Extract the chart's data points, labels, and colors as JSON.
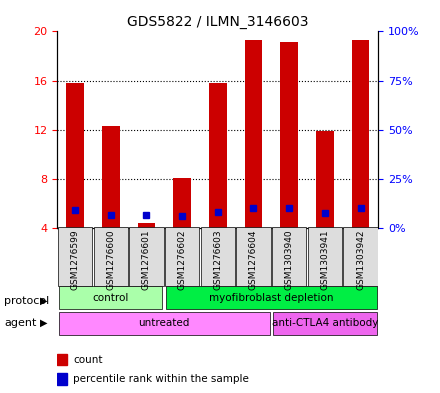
{
  "title": "GDS5822 / ILMN_3146603",
  "samples": [
    "GSM1276599",
    "GSM1276600",
    "GSM1276601",
    "GSM1276602",
    "GSM1276603",
    "GSM1276604",
    "GSM1303940",
    "GSM1303941",
    "GSM1303942"
  ],
  "count_bottom": [
    4,
    4,
    4,
    4,
    4,
    4,
    4,
    4,
    4
  ],
  "count_top": [
    15.8,
    12.3,
    4.4,
    8.1,
    15.8,
    19.3,
    19.1,
    11.9,
    19.3
  ],
  "percentile": [
    9.0,
    6.5,
    6.8,
    5.9,
    8.3,
    10.2,
    10.2,
    7.5,
    10.2
  ],
  "ylim_left": [
    4,
    20
  ],
  "ylim_right": [
    0,
    100
  ],
  "yticks_left": [
    4,
    8,
    12,
    16,
    20
  ],
  "yticks_right": [
    0,
    25,
    50,
    75,
    100
  ],
  "bar_color": "#cc0000",
  "dot_color": "#0000cc",
  "protocol_groups": [
    {
      "label": "control",
      "start": 0,
      "end": 3,
      "color": "#aaffaa"
    },
    {
      "label": "myofibroblast depletion",
      "start": 3,
      "end": 9,
      "color": "#00ee44"
    }
  ],
  "agent_groups": [
    {
      "label": "untreated",
      "start": 0,
      "end": 6,
      "color": "#ff88ff"
    },
    {
      "label": "anti-CTLA4 antibody",
      "start": 6,
      "end": 9,
      "color": "#ee66ee"
    }
  ],
  "protocol_label": "protocol",
  "agent_label": "agent",
  "background_color": "#ffffff",
  "plot_bg_color": "#ffffff"
}
